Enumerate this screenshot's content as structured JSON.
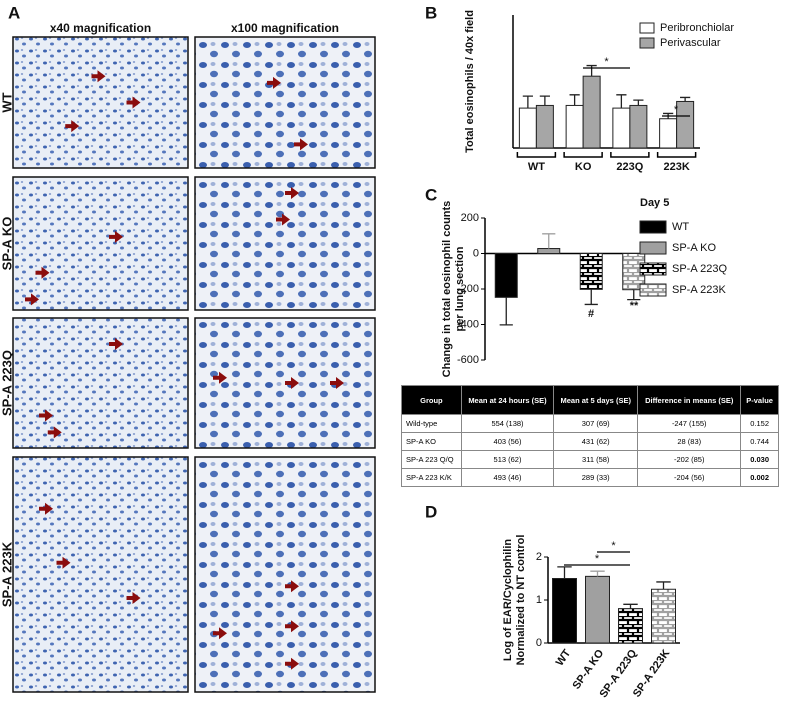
{
  "panel_labels": [
    "A",
    "B",
    "C",
    "D"
  ],
  "micrographs": {
    "columns": [
      "x40 magnification",
      "x100 magnification"
    ],
    "rows": [
      "WT",
      "SP-A KO",
      "SP-A 223Q",
      "SP-A 223K"
    ]
  },
  "chart_data": [
    {
      "type": "bar",
      "ylabel": [
        "Total eosinophils / 40x field"
      ],
      "categories": [
        "WT",
        "KO",
        "223Q",
        "223K"
      ],
      "ylim": [
        0,
        500
      ],
      "series": [
        {
          "name": "Peribronchiolar",
          "color": "#ffffff",
          "values": [
            150,
            160,
            150,
            110
          ],
          "errors": [
            45,
            40,
            50,
            20
          ]
        },
        {
          "name": "Perivascular",
          "color": "#a6a6a6",
          "values": [
            160,
            270,
            160,
            175
          ],
          "errors": [
            35,
            40,
            20,
            15
          ]
        }
      ],
      "annotations": [
        "*",
        "*"
      ],
      "legend": "upper right"
    },
    {
      "type": "bar",
      "legend_title": "Day 5",
      "ylabel": [
        "Change in total eosinophil counts",
        "per lung section"
      ],
      "categories": [
        "WT",
        "SP-A KO",
        "SP-A 223Q",
        "SP-A 223K"
      ],
      "values": [
        -247,
        28,
        -202,
        -204
      ],
      "errors": [
        155,
        83,
        85,
        56
      ],
      "colors": [
        "#000000",
        "#a0a0a0",
        "#000000",
        "#a0a0a0"
      ],
      "hatch": [
        false,
        false,
        true,
        true
      ],
      "ylim": [
        -600,
        200
      ],
      "yticks": [
        -600,
        -400,
        -200,
        0,
        200
      ],
      "annotations": [
        "#",
        "**"
      ],
      "legend": "right"
    },
    {
      "type": "bar",
      "ylabel": [
        "Log of EAR/Cyclophilin",
        "Normalized to NT control"
      ],
      "categories": [
        "WT",
        "SP-A KO",
        "SP-A 223Q",
        "SP-A 223K"
      ],
      "values": [
        1.5,
        1.55,
        0.8,
        1.25
      ],
      "errors": [
        0.27,
        0.12,
        0.1,
        0.17
      ],
      "colors": [
        "#000000",
        "#a0a0a0",
        "#000000",
        "#a0a0a0"
      ],
      "hatch": [
        false,
        false,
        true,
        true
      ],
      "ylim": [
        0,
        2
      ],
      "yticks": [
        0,
        1,
        2
      ],
      "annotations": [
        "*",
        "*"
      ]
    }
  ],
  "table": {
    "header": [
      "Group",
      "Mean at 24 hours (SE)",
      "Mean at 5 days (SE)",
      "Difference in means (SE)",
      "P-value"
    ],
    "rows": [
      [
        "Wild-type",
        "554 (138)",
        "307 (69)",
        "-247 (155)",
        "0.152"
      ],
      [
        "SP-A KO",
        "403 (56)",
        "431 (62)",
        "28 (83)",
        "0.744"
      ],
      [
        "SP-A 223 Q/Q",
        "513 (62)",
        "311 (58)",
        "-202 (85)",
        "0.030"
      ],
      [
        "SP-A 223 K/K",
        "493 (46)",
        "289 (33)",
        "-204 (56)",
        "0.002"
      ]
    ]
  }
}
